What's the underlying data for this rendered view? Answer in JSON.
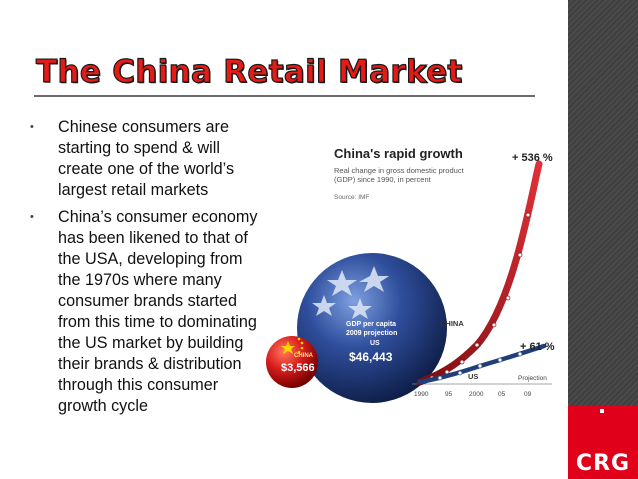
{
  "slide": {
    "title": "The China Retail Market"
  },
  "bullets": [
    {
      "text": "Chinese consumers are starting to spend & will create one of the world’s largest retail markets"
    },
    {
      "text": "China’s consumer economy has been likened to that of the USA, developing from the 1970s where many consumer brands started from this time to dominating the US market by building their brands & distribution through this consumer growth cycle"
    }
  ],
  "bullet_marker": "•",
  "figure": {
    "title": "China's rapid growth",
    "subtitle": "Real change in gross domestic product (GDP) since 1990, in percent",
    "source": "Source: IMF",
    "china_pct": "+ 536 %",
    "us_pct": "+ 61 %",
    "china_label": "CHINA",
    "us_label": "US",
    "projection_label": "Projection",
    "x_ticks": [
      "1990",
      "95",
      "2000",
      "05",
      "09"
    ],
    "globe_gdp_label": "GDP per capita 2009 projection",
    "globe_us_label": "US",
    "globe_us_value": "$46,443",
    "china_globe_label": "CHINA",
    "china_globe_value": "$3,566"
  },
  "logo": {
    "text": "CRG"
  },
  "colors": {
    "title_red": "#e41b17",
    "sidebar": "#434343",
    "logo_red": "#e1001a",
    "china_line": "#c4161c",
    "us_line": "#1f3f7a",
    "globe_blue": "#2f4e9c"
  }
}
